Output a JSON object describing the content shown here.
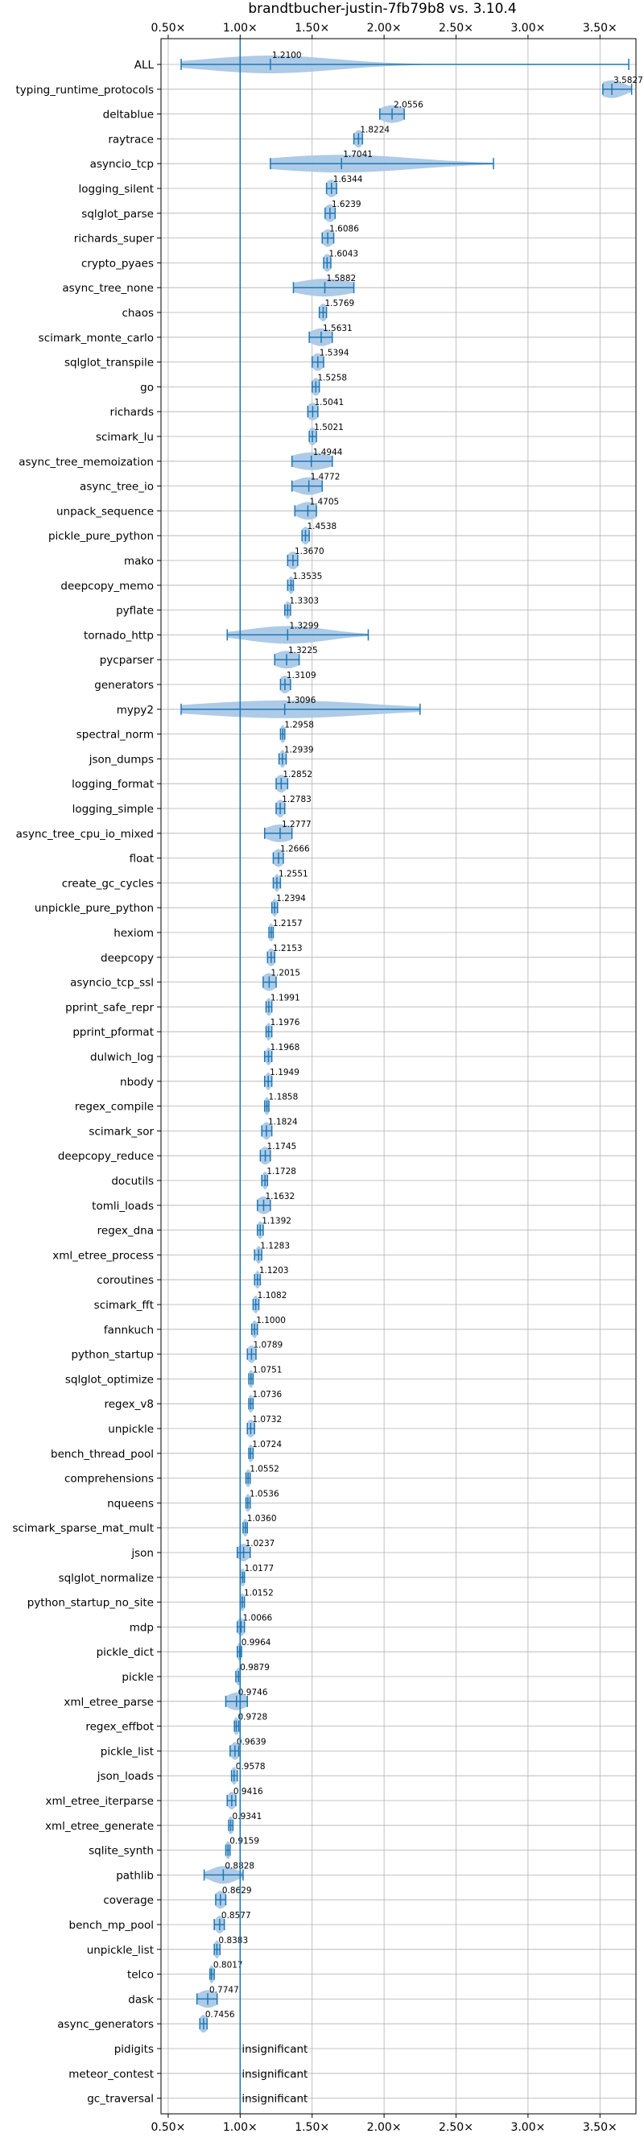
{
  "chart_data": {
    "type": "violin",
    "title": "brandtbucher-justin-7fb79b8 vs. 3.10.4",
    "xlim": [
      0.45,
      3.75
    ],
    "x_ticks": [
      0.5,
      1.0,
      1.5,
      2.0,
      2.5,
      3.0,
      3.5
    ],
    "x_tick_labels": [
      "0.50×",
      "1.00×",
      "1.50×",
      "2.00×",
      "2.50×",
      "3.00×",
      "3.50×"
    ],
    "reference_line_x": 1.0,
    "grid": true,
    "insignificant_label": "insignificant",
    "benchmarks": [
      {
        "name": "ALL",
        "label": "1.2100",
        "median": 1.21,
        "min": 0.59,
        "max": 3.7,
        "spread": 0.45
      },
      {
        "name": "typing_runtime_protocols",
        "label": "3.5827",
        "median": 3.5827,
        "min": 3.52,
        "max": 3.72,
        "spread": 0.09
      },
      {
        "name": "deltablue",
        "label": "2.0556",
        "median": 2.0556,
        "min": 1.97,
        "max": 2.14,
        "spread": 0.09
      },
      {
        "name": "raytrace",
        "label": "1.8224",
        "median": 1.8224,
        "min": 1.79,
        "max": 1.85,
        "spread": 0.03
      },
      {
        "name": "asyncio_tcp",
        "label": "1.7041",
        "median": 1.7041,
        "min": 1.21,
        "max": 2.76,
        "spread": 0.5
      },
      {
        "name": "logging_silent",
        "label": "1.6344",
        "median": 1.6344,
        "min": 1.6,
        "max": 1.67,
        "spread": 0.04
      },
      {
        "name": "sqlglot_parse",
        "label": "1.6239",
        "median": 1.6239,
        "min": 1.59,
        "max": 1.66,
        "spread": 0.04
      },
      {
        "name": "richards_super",
        "label": "1.6086",
        "median": 1.6086,
        "min": 1.57,
        "max": 1.65,
        "spread": 0.04
      },
      {
        "name": "crypto_pyaes",
        "label": "1.6043",
        "median": 1.6043,
        "min": 1.58,
        "max": 1.63,
        "spread": 0.03
      },
      {
        "name": "async_tree_none",
        "label": "1.5882",
        "median": 1.5882,
        "min": 1.37,
        "max": 1.79,
        "spread": 0.2
      },
      {
        "name": "chaos",
        "label": "1.5769",
        "median": 1.5769,
        "min": 1.55,
        "max": 1.6,
        "spread": 0.03
      },
      {
        "name": "scimark_monte_carlo",
        "label": "1.5631",
        "median": 1.5631,
        "min": 1.48,
        "max": 1.64,
        "spread": 0.08
      },
      {
        "name": "sqlglot_transpile",
        "label": "1.5394",
        "median": 1.5394,
        "min": 1.5,
        "max": 1.58,
        "spread": 0.04
      },
      {
        "name": "go",
        "label": "1.5258",
        "median": 1.5258,
        "min": 1.5,
        "max": 1.55,
        "spread": 0.03
      },
      {
        "name": "richards",
        "label": "1.5041",
        "median": 1.5041,
        "min": 1.47,
        "max": 1.54,
        "spread": 0.04
      },
      {
        "name": "scimark_lu",
        "label": "1.5021",
        "median": 1.5021,
        "min": 1.48,
        "max": 1.53,
        "spread": 0.03
      },
      {
        "name": "async_tree_memoization",
        "label": "1.4944",
        "median": 1.4944,
        "min": 1.36,
        "max": 1.64,
        "spread": 0.14
      },
      {
        "name": "async_tree_io",
        "label": "1.4772",
        "median": 1.4772,
        "min": 1.36,
        "max": 1.57,
        "spread": 0.1
      },
      {
        "name": "unpack_sequence",
        "label": "1.4705",
        "median": 1.4705,
        "min": 1.38,
        "max": 1.53,
        "spread": 0.08
      },
      {
        "name": "pickle_pure_python",
        "label": "1.4538",
        "median": 1.4538,
        "min": 1.43,
        "max": 1.48,
        "spread": 0.03
      },
      {
        "name": "mako",
        "label": "1.3670",
        "median": 1.367,
        "min": 1.33,
        "max": 1.4,
        "spread": 0.04
      },
      {
        "name": "deepcopy_memo",
        "label": "1.3535",
        "median": 1.3535,
        "min": 1.33,
        "max": 1.37,
        "spread": 0.02
      },
      {
        "name": "pyflate",
        "label": "1.3303",
        "median": 1.3303,
        "min": 1.31,
        "max": 1.35,
        "spread": 0.02
      },
      {
        "name": "tornado_http",
        "label": "1.3299",
        "median": 1.3299,
        "min": 0.91,
        "max": 1.89,
        "spread": 0.28
      },
      {
        "name": "pycparser",
        "label": "1.3225",
        "median": 1.3225,
        "min": 1.24,
        "max": 1.41,
        "spread": 0.09
      },
      {
        "name": "generators",
        "label": "1.3109",
        "median": 1.3109,
        "min": 1.28,
        "max": 1.35,
        "spread": 0.04
      },
      {
        "name": "mypy2",
        "label": "1.3096",
        "median": 1.3096,
        "min": 0.59,
        "max": 2.25,
        "spread": 0.6
      },
      {
        "name": "spectral_norm",
        "label": "1.2958",
        "median": 1.2958,
        "min": 1.28,
        "max": 1.31,
        "spread": 0.02
      },
      {
        "name": "json_dumps",
        "label": "1.2939",
        "median": 1.2939,
        "min": 1.27,
        "max": 1.32,
        "spread": 0.02
      },
      {
        "name": "logging_format",
        "label": "1.2852",
        "median": 1.2852,
        "min": 1.25,
        "max": 1.33,
        "spread": 0.04
      },
      {
        "name": "logging_simple",
        "label": "1.2783",
        "median": 1.2783,
        "min": 1.25,
        "max": 1.31,
        "spread": 0.03
      },
      {
        "name": "async_tree_cpu_io_mixed",
        "label": "1.2777",
        "median": 1.2777,
        "min": 1.17,
        "max": 1.36,
        "spread": 0.1
      },
      {
        "name": "float",
        "label": "1.2666",
        "median": 1.2666,
        "min": 1.23,
        "max": 1.3,
        "spread": 0.04
      },
      {
        "name": "create_gc_cycles",
        "label": "1.2551",
        "median": 1.2551,
        "min": 1.23,
        "max": 1.28,
        "spread": 0.02
      },
      {
        "name": "unpickle_pure_python",
        "label": "1.2394",
        "median": 1.2394,
        "min": 1.22,
        "max": 1.26,
        "spread": 0.02
      },
      {
        "name": "hexiom",
        "label": "1.2157",
        "median": 1.2157,
        "min": 1.2,
        "max": 1.23,
        "spread": 0.02
      },
      {
        "name": "deepcopy",
        "label": "1.2153",
        "median": 1.2153,
        "min": 1.19,
        "max": 1.24,
        "spread": 0.03
      },
      {
        "name": "asyncio_tcp_ssl",
        "label": "1.2015",
        "median": 1.2015,
        "min": 1.16,
        "max": 1.25,
        "spread": 0.05
      },
      {
        "name": "pprint_safe_repr",
        "label": "1.1991",
        "median": 1.1991,
        "min": 1.18,
        "max": 1.22,
        "spread": 0.02
      },
      {
        "name": "pprint_pformat",
        "label": "1.1976",
        "median": 1.1976,
        "min": 1.18,
        "max": 1.22,
        "spread": 0.02
      },
      {
        "name": "dulwich_log",
        "label": "1.1968",
        "median": 1.1968,
        "min": 1.17,
        "max": 1.22,
        "spread": 0.02
      },
      {
        "name": "nbody",
        "label": "1.1949",
        "median": 1.1949,
        "min": 1.17,
        "max": 1.22,
        "spread": 0.02
      },
      {
        "name": "regex_compile",
        "label": "1.1858",
        "median": 1.1858,
        "min": 1.17,
        "max": 1.2,
        "spread": 0.02
      },
      {
        "name": "scimark_sor",
        "label": "1.1824",
        "median": 1.1824,
        "min": 1.15,
        "max": 1.22,
        "spread": 0.03
      },
      {
        "name": "deepcopy_reduce",
        "label": "1.1745",
        "median": 1.1745,
        "min": 1.14,
        "max": 1.21,
        "spread": 0.04
      },
      {
        "name": "docutils",
        "label": "1.1728",
        "median": 1.1728,
        "min": 1.15,
        "max": 1.19,
        "spread": 0.02
      },
      {
        "name": "tomli_loads",
        "label": "1.1632",
        "median": 1.1632,
        "min": 1.12,
        "max": 1.21,
        "spread": 0.05
      },
      {
        "name": "regex_dna",
        "label": "1.1392",
        "median": 1.1392,
        "min": 1.12,
        "max": 1.16,
        "spread": 0.02
      },
      {
        "name": "xml_etree_process",
        "label": "1.1283",
        "median": 1.1283,
        "min": 1.1,
        "max": 1.15,
        "spread": 0.02
      },
      {
        "name": "coroutines",
        "label": "1.1203",
        "median": 1.1203,
        "min": 1.1,
        "max": 1.14,
        "spread": 0.02
      },
      {
        "name": "scimark_fft",
        "label": "1.1082",
        "median": 1.1082,
        "min": 1.09,
        "max": 1.13,
        "spread": 0.02
      },
      {
        "name": "fannkuch",
        "label": "1.1000",
        "median": 1.1,
        "min": 1.08,
        "max": 1.12,
        "spread": 0.02
      },
      {
        "name": "python_startup",
        "label": "1.0789",
        "median": 1.0789,
        "min": 1.05,
        "max": 1.11,
        "spread": 0.03
      },
      {
        "name": "sqlglot_optimize",
        "label": "1.0751",
        "median": 1.0751,
        "min": 1.06,
        "max": 1.09,
        "spread": 0.02
      },
      {
        "name": "regex_v8",
        "label": "1.0736",
        "median": 1.0736,
        "min": 1.06,
        "max": 1.09,
        "spread": 0.02
      },
      {
        "name": "unpickle",
        "label": "1.0732",
        "median": 1.0732,
        "min": 1.05,
        "max": 1.1,
        "spread": 0.03
      },
      {
        "name": "bench_thread_pool",
        "label": "1.0724",
        "median": 1.0724,
        "min": 1.06,
        "max": 1.09,
        "spread": 0.02
      },
      {
        "name": "comprehensions",
        "label": "1.0552",
        "median": 1.0552,
        "min": 1.04,
        "max": 1.07,
        "spread": 0.02
      },
      {
        "name": "nqueens",
        "label": "1.0536",
        "median": 1.0536,
        "min": 1.04,
        "max": 1.07,
        "spread": 0.02
      },
      {
        "name": "scimark_sparse_mat_mult",
        "label": "1.0360",
        "median": 1.036,
        "min": 1.02,
        "max": 1.05,
        "spread": 0.02
      },
      {
        "name": "json",
        "label": "1.0237",
        "median": 1.0237,
        "min": 0.98,
        "max": 1.07,
        "spread": 0.04
      },
      {
        "name": "sqlglot_normalize",
        "label": "1.0177",
        "median": 1.0177,
        "min": 1.0,
        "max": 1.03,
        "spread": 0.02
      },
      {
        "name": "python_startup_no_site",
        "label": "1.0152",
        "median": 1.0152,
        "min": 1.0,
        "max": 1.03,
        "spread": 0.02
      },
      {
        "name": "mdp",
        "label": "1.0066",
        "median": 1.0066,
        "min": 0.98,
        "max": 1.03,
        "spread": 0.03
      },
      {
        "name": "pickle_dict",
        "label": "0.9964",
        "median": 0.9964,
        "min": 0.98,
        "max": 1.01,
        "spread": 0.02
      },
      {
        "name": "pickle",
        "label": "0.9879",
        "median": 0.9879,
        "min": 0.97,
        "max": 1.0,
        "spread": 0.02
      },
      {
        "name": "xml_etree_parse",
        "label": "0.9746",
        "median": 0.9746,
        "min": 0.9,
        "max": 1.05,
        "spread": 0.07
      },
      {
        "name": "regex_effbot",
        "label": "0.9728",
        "median": 0.9728,
        "min": 0.96,
        "max": 0.99,
        "spread": 0.02
      },
      {
        "name": "pickle_list",
        "label": "0.9639",
        "median": 0.9639,
        "min": 0.93,
        "max": 0.99,
        "spread": 0.03
      },
      {
        "name": "json_loads",
        "label": "0.9578",
        "median": 0.9578,
        "min": 0.94,
        "max": 0.98,
        "spread": 0.02
      },
      {
        "name": "xml_etree_iterparse",
        "label": "0.9416",
        "median": 0.9416,
        "min": 0.91,
        "max": 0.97,
        "spread": 0.03
      },
      {
        "name": "xml_etree_generate",
        "label": "0.9341",
        "median": 0.9341,
        "min": 0.92,
        "max": 0.95,
        "spread": 0.02
      },
      {
        "name": "sqlite_synth",
        "label": "0.9159",
        "median": 0.9159,
        "min": 0.9,
        "max": 0.93,
        "spread": 0.02
      },
      {
        "name": "pathlib",
        "label": "0.8828",
        "median": 0.8828,
        "min": 0.75,
        "max": 1.02,
        "spread": 0.09
      },
      {
        "name": "coverage",
        "label": "0.8629",
        "median": 0.8629,
        "min": 0.83,
        "max": 0.9,
        "spread": 0.04
      },
      {
        "name": "bench_mp_pool",
        "label": "0.8577",
        "median": 0.8577,
        "min": 0.82,
        "max": 0.89,
        "spread": 0.03
      },
      {
        "name": "unpickle_list",
        "label": "0.8383",
        "median": 0.8383,
        "min": 0.82,
        "max": 0.86,
        "spread": 0.02
      },
      {
        "name": "telco",
        "label": "0.8017",
        "median": 0.8017,
        "min": 0.79,
        "max": 0.82,
        "spread": 0.02
      },
      {
        "name": "dask",
        "label": "0.7747",
        "median": 0.7747,
        "min": 0.7,
        "max": 0.84,
        "spread": 0.07
      },
      {
        "name": "async_generators",
        "label": "0.7456",
        "median": 0.7456,
        "min": 0.72,
        "max": 0.77,
        "spread": 0.03
      },
      {
        "name": "pidigits",
        "label": "insignificant",
        "median": null,
        "min": null,
        "max": null,
        "spread": 0
      },
      {
        "name": "meteor_contest",
        "label": "insignificant",
        "median": null,
        "min": null,
        "max": null,
        "spread": 0
      },
      {
        "name": "gc_traversal",
        "label": "insignificant",
        "median": null,
        "min": null,
        "max": null,
        "spread": 0
      }
    ],
    "colors": {
      "violin_fill": "#a9c8e6",
      "line": "#1f77b4",
      "reference": "#1f77b4",
      "grid": "#b0b0b0",
      "text": "#000000"
    }
  }
}
